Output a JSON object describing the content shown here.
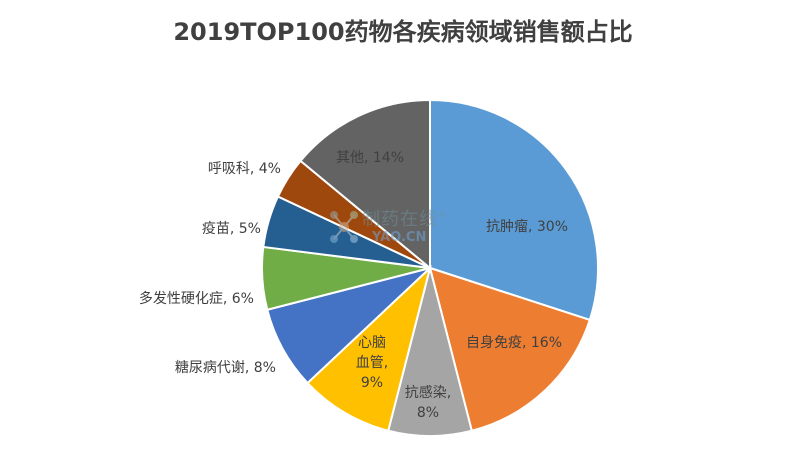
{
  "chart_data": {
    "type": "pie",
    "title": "2019TOP100药物各疾病领域销售额占比",
    "slices": [
      {
        "label": "抗肿瘤",
        "value": 30,
        "color": "#5b9bd5"
      },
      {
        "label": "自身免疫",
        "value": 16,
        "color": "#ed7d31"
      },
      {
        "label": "抗感染",
        "value": 8,
        "color": "#a5a5a5"
      },
      {
        "label": "心脑血管",
        "value": 9,
        "color": "#ffc000"
      },
      {
        "label": "糖尿病代谢",
        "value": 8,
        "color": "#4472c4"
      },
      {
        "label": "多发性硬化症",
        "value": 6,
        "color": "#70ad47"
      },
      {
        "label": "疫苗",
        "value": 5,
        "color": "#255e91"
      },
      {
        "label": "呼吸科",
        "value": 4,
        "color": "#9e480e"
      },
      {
        "label": "其他",
        "value": 14,
        "color": "#636363"
      }
    ],
    "legend": "none",
    "label_format": "{label}, {value}%"
  },
  "watermark": {
    "text_cn": "制药在线",
    "text_en": "YAO.CN",
    "mark": "®"
  }
}
